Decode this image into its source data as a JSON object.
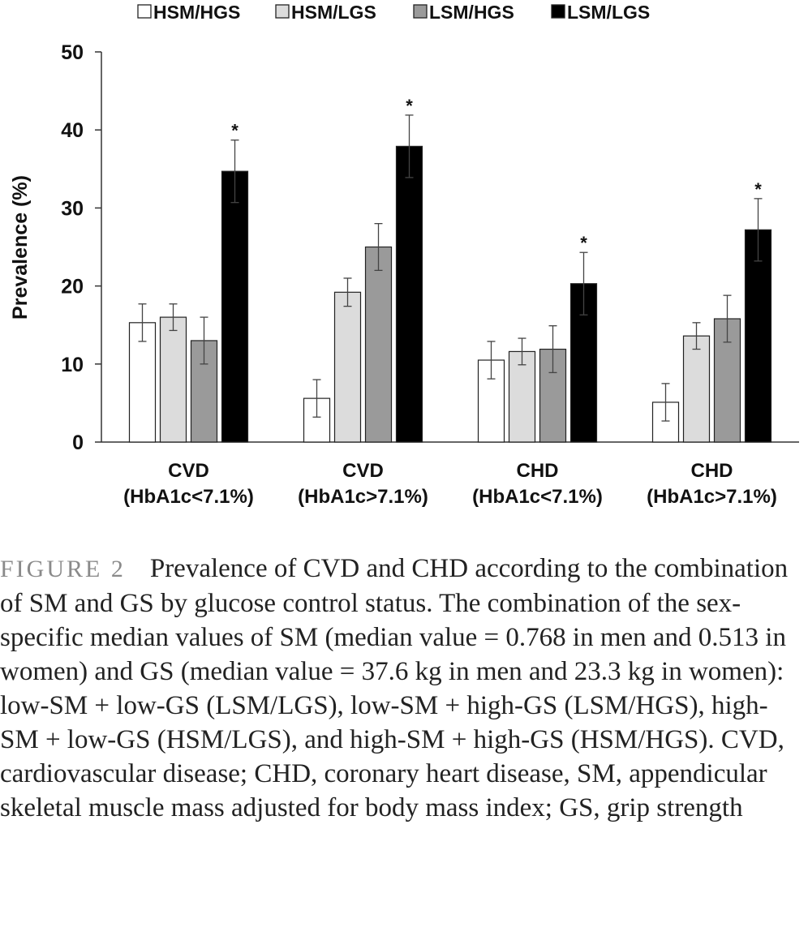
{
  "chart_data": {
    "type": "bar",
    "title": "",
    "xlabel": "",
    "ylabel": "Prevalence (%)",
    "ylim": [
      0,
      50
    ],
    "yticks": [
      0,
      10,
      20,
      30,
      40,
      50
    ],
    "grid": false,
    "legend_position": "top",
    "categories": [
      [
        "CVD",
        "(HbA1c<7.1%)"
      ],
      [
        "CVD",
        "(HbA1c>7.1%)"
      ],
      [
        "CHD",
        "(HbA1c<7.1%)"
      ],
      [
        "CHD",
        "(HbA1c>7.1%)"
      ]
    ],
    "series": [
      {
        "name": "HSM/HGS",
        "color": "#ffffff",
        "values": [
          15.3,
          5.6,
          10.5,
          5.1
        ],
        "errors": [
          2.4,
          2.4,
          2.4,
          2.4
        ]
      },
      {
        "name": "HSM/LGS",
        "color": "#dcdcdc",
        "values": [
          16.0,
          19.2,
          11.6,
          13.6
        ],
        "errors": [
          1.7,
          1.8,
          1.7,
          1.7
        ]
      },
      {
        "name": "LSM/HGS",
        "color": "#9a9a9a",
        "values": [
          13.0,
          25.0,
          11.9,
          15.8
        ],
        "errors": [
          3.0,
          3.0,
          3.0,
          3.0
        ]
      },
      {
        "name": "LSM/LGS",
        "color": "#000000",
        "values": [
          34.7,
          37.9,
          20.3,
          27.2
        ],
        "errors": [
          4.0,
          4.0,
          4.0,
          4.0
        ]
      }
    ],
    "annotations": {
      "text": "*",
      "series": "LSM/LGS",
      "categories": [
        0,
        1,
        2,
        3
      ]
    }
  },
  "caption": {
    "label": "FIGURE 2",
    "text": "Prevalence of CVD and CHD according to the combination of SM and GS by glucose control status. The combination of the sex-specific median values of SM (median value = 0.768 in men and 0.513 in women) and GS (median value = 37.6 kg in men and 23.3 kg in women): low-SM + low-GS (LSM/LGS), low-SM + high-GS (LSM/HGS), high-SM + low-GS (HSM/LGS), and high-SM + high-GS (HSM/HGS). CVD, cardiovascular disease; CHD, coronary heart disease, SM, appendicular skeletal muscle mass adjusted for body mass index; GS, grip strength"
  }
}
